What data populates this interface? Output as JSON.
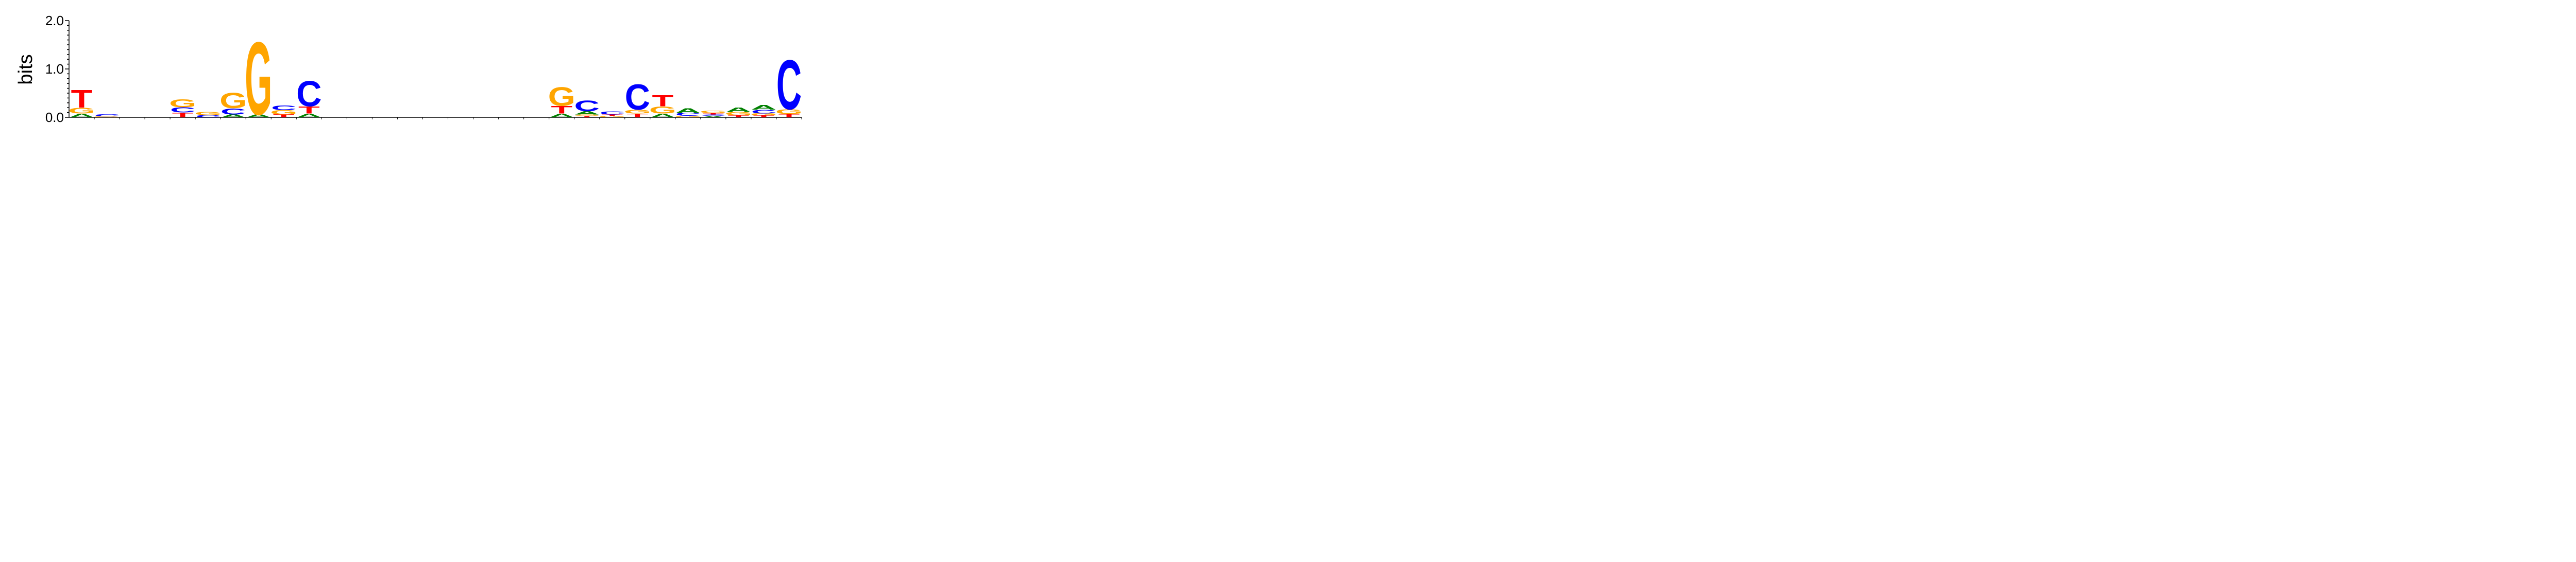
{
  "chart_data": {
    "type": "sequence-logo",
    "ylabel": "bits",
    "ylim": [
      0,
      2.0
    ],
    "yticks": [
      {
        "value": 0.0,
        "label": "0.0"
      },
      {
        "value": 1.0,
        "label": "1.0"
      },
      {
        "value": 2.0,
        "label": "2.0"
      }
    ],
    "colors": {
      "A": "#008000",
      "C": "#0000ff",
      "G": "#ffa500",
      "T": "#ff0000"
    },
    "positions": [
      [
        [
          "A",
          0.08
        ],
        [
          "G",
          0.12
        ],
        [
          "T",
          0.38
        ]
      ],
      [
        [
          "G",
          0.02
        ],
        [
          "C",
          0.04
        ]
      ],
      [],
      [],
      [
        [
          "T",
          0.1
        ],
        [
          "C",
          0.11
        ],
        [
          "G",
          0.17
        ]
      ],
      [
        [
          "C",
          0.05
        ],
        [
          "G",
          0.06
        ]
      ],
      [
        [
          "A",
          0.06
        ],
        [
          "C",
          0.13
        ],
        [
          "G",
          0.33
        ]
      ],
      [
        [
          "A",
          0.06
        ],
        [
          "G",
          1.55
        ]
      ],
      [
        [
          "T",
          0.06
        ],
        [
          "G",
          0.09
        ],
        [
          "C",
          0.1
        ]
      ],
      [
        [
          "A",
          0.08
        ],
        [
          "T",
          0.15
        ],
        [
          "C",
          0.54
        ]
      ],
      [],
      [],
      [],
      [],
      [],
      [],
      [],
      [],
      [],
      [
        [
          "A",
          0.08
        ],
        [
          "T",
          0.16
        ],
        [
          "G",
          0.4
        ]
      ],
      [
        [
          "T",
          0.03
        ],
        [
          "G",
          0.03
        ],
        [
          "A",
          0.07
        ],
        [
          "C",
          0.23
        ]
      ],
      [
        [
          "G",
          0.03
        ],
        [
          "T",
          0.03
        ],
        [
          "C",
          0.06
        ]
      ],
      [
        [
          "T",
          0.08
        ],
        [
          "G",
          0.08
        ],
        [
          "C",
          0.54
        ]
      ],
      [
        [
          "A",
          0.08
        ],
        [
          "G",
          0.15
        ],
        [
          "T",
          0.24
        ]
      ],
      [
        [
          "G",
          0.03
        ],
        [
          "C",
          0.06
        ],
        [
          "A",
          0.1
        ]
      ],
      [
        [
          "A",
          0.03
        ],
        [
          "C",
          0.03
        ],
        [
          "T",
          0.03
        ],
        [
          "G",
          0.05
        ]
      ],
      [
        [
          "T",
          0.04
        ],
        [
          "G",
          0.07
        ],
        [
          "A",
          0.09
        ]
      ],
      [
        [
          "T",
          0.04
        ],
        [
          "G",
          0.04
        ],
        [
          "C",
          0.08
        ],
        [
          "A",
          0.1
        ]
      ],
      [
        [
          "T",
          0.07
        ],
        [
          "G",
          0.1
        ],
        [
          "C",
          1.05
        ]
      ]
    ]
  }
}
